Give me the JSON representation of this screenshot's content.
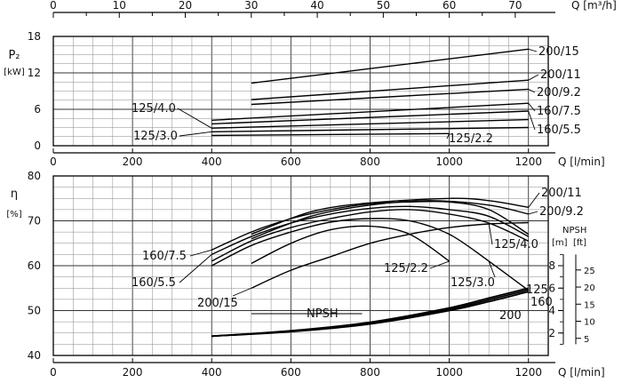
{
  "chart_data": [
    {
      "type": "line",
      "ylabel": "P₂",
      "yunit": "[kW]",
      "xlabel": "Q [l/min]",
      "secondary_x_label": "Q [m³/h]",
      "x_ticks": [
        0,
        200,
        400,
        600,
        800,
        1000,
        1200
      ],
      "secondary_x_ticks": [
        0,
        10,
        20,
        30,
        40,
        50,
        60,
        70
      ],
      "y_ticks": [
        0,
        6,
        12,
        18
      ],
      "ylim": [
        0,
        18
      ],
      "xlim": [
        0,
        1250
      ],
      "grid": true,
      "series": [
        {
          "name": "200/15",
          "points": [
            [
              500,
              10.3
            ],
            [
              1200,
              15.9
            ]
          ]
        },
        {
          "name": "200/11",
          "points": [
            [
              500,
              7.6
            ],
            [
              1200,
              10.8
            ]
          ]
        },
        {
          "name": "200/9.2",
          "points": [
            [
              500,
              6.8
            ],
            [
              1200,
              9.3
            ]
          ]
        },
        {
          "name": "160/7.5",
          "points": [
            [
              400,
              4.2
            ],
            [
              1200,
              7.0
            ]
          ]
        },
        {
          "name": "160/5.5",
          "points": [
            [
              400,
              3.6
            ],
            [
              1200,
              5.7
            ]
          ]
        },
        {
          "name": "125/4.0",
          "points": [
            [
              400,
              2.9
            ],
            [
              1200,
              4.3
            ]
          ]
        },
        {
          "name": "125/3.0",
          "points": [
            [
              400,
              2.3
            ],
            [
              1200,
              3.0
            ]
          ]
        },
        {
          "name": "125/2.2",
          "points": [
            [
              400,
              1.7
            ],
            [
              1000,
              2.0
            ]
          ]
        }
      ]
    },
    {
      "type": "line",
      "ylabel": "η",
      "yunit": "[%]",
      "xlabel": "Q [l/min]",
      "x_ticks": [
        0,
        200,
        400,
        600,
        800,
        1000,
        1200
      ],
      "y_ticks": [
        40,
        50,
        60,
        70,
        80
      ],
      "ylim": [
        40,
        80
      ],
      "xlim": [
        0,
        1250
      ],
      "grid": true,
      "series": [
        {
          "name": "200/11",
          "points": [
            [
              500,
              67
            ],
            [
              650,
              72
            ],
            [
              800,
              74
            ],
            [
              1000,
              75
            ],
            [
              1100,
              74.5
            ],
            [
              1200,
              73
            ]
          ]
        },
        {
          "name": "200/9.2",
          "points": [
            [
              500,
              66
            ],
            [
              650,
              71
            ],
            [
              800,
              73.5
            ],
            [
              950,
              74.5
            ],
            [
              1100,
              73.5
            ],
            [
              1200,
              71.5
            ]
          ]
        },
        {
          "name": "200/15",
          "points": [
            [
              500,
              55
            ],
            [
              600,
              59
            ],
            [
              700,
              62
            ],
            [
              800,
              65
            ],
            [
              900,
              67
            ],
            [
              1000,
              68.5
            ],
            [
              1100,
              69.3
            ],
            [
              1200,
              69.6
            ]
          ]
        },
        {
          "name": "160/7.5",
          "points": [
            [
              400,
              63.5
            ],
            [
              500,
              67.5
            ],
            [
              600,
              70.5
            ],
            [
              700,
              72.5
            ],
            [
              800,
              73.8
            ],
            [
              900,
              74.2
            ],
            [
              1000,
              74.2
            ],
            [
              1100,
              72.5
            ],
            [
              1200,
              67
            ]
          ]
        },
        {
          "name": "160/5.5",
          "points": [
            [
              400,
              62.5
            ],
            [
              500,
              66.5
            ],
            [
              600,
              69.5
            ],
            [
              700,
              71.5
            ],
            [
              800,
              72.8
            ],
            [
              900,
              73.2
            ],
            [
              1000,
              72.5
            ],
            [
              1100,
              71
            ],
            [
              1200,
              66.5
            ]
          ]
        },
        {
          "name": "125/4.0",
          "points": [
            [
              400,
              61
            ],
            [
              500,
              65.5
            ],
            [
              600,
              68.5
            ],
            [
              700,
              70.5
            ],
            [
              800,
              72
            ],
            [
              900,
              72.5
            ],
            [
              1000,
              71.5
            ],
            [
              1100,
              69.5
            ],
            [
              1200,
              65.5
            ]
          ]
        },
        {
          "name": "125/3.0",
          "points": [
            [
              400,
              60
            ],
            [
              500,
              64.5
            ],
            [
              600,
              67.5
            ],
            [
              700,
              69.7
            ],
            [
              800,
              70.5
            ],
            [
              900,
              70
            ],
            [
              1000,
              67
            ],
            [
              1100,
              61
            ],
            [
              1200,
              54.5
            ]
          ]
        },
        {
          "name": "125/2.2",
          "points": [
            [
              500,
              60.5
            ],
            [
              600,
              65
            ],
            [
              700,
              68
            ],
            [
              800,
              68.8
            ],
            [
              900,
              67
            ],
            [
              1000,
              61
            ]
          ]
        }
      ],
      "npsh": {
        "name": "NPSH",
        "unit_m": "[m]",
        "unit_ft": "[ft]",
        "m_ticks": [
          2,
          4,
          6,
          8
        ],
        "ft_ticks": [
          5,
          10,
          15,
          20,
          25
        ],
        "curves": [
          {
            "name": "200",
            "points": [
              [
                400,
                44.3
              ],
              [
                600,
                45.3
              ],
              [
                800,
                47
              ],
              [
                1000,
                50
              ],
              [
                1100,
                52
              ],
              [
                1200,
                54.2
              ]
            ]
          },
          {
            "name": "160",
            "points": [
              [
                400,
                44.3
              ],
              [
                600,
                45.4
              ],
              [
                800,
                47.2
              ],
              [
                1000,
                50.3
              ],
              [
                1100,
                52.4
              ],
              [
                1200,
                54.6
              ]
            ]
          },
          {
            "name": "125",
            "points": [
              [
                400,
                44.3
              ],
              [
                600,
                45.5
              ],
              [
                800,
                47.4
              ],
              [
                1000,
                50.6
              ],
              [
                1100,
                52.8
              ],
              [
                1200,
                55
              ]
            ]
          }
        ]
      }
    }
  ]
}
